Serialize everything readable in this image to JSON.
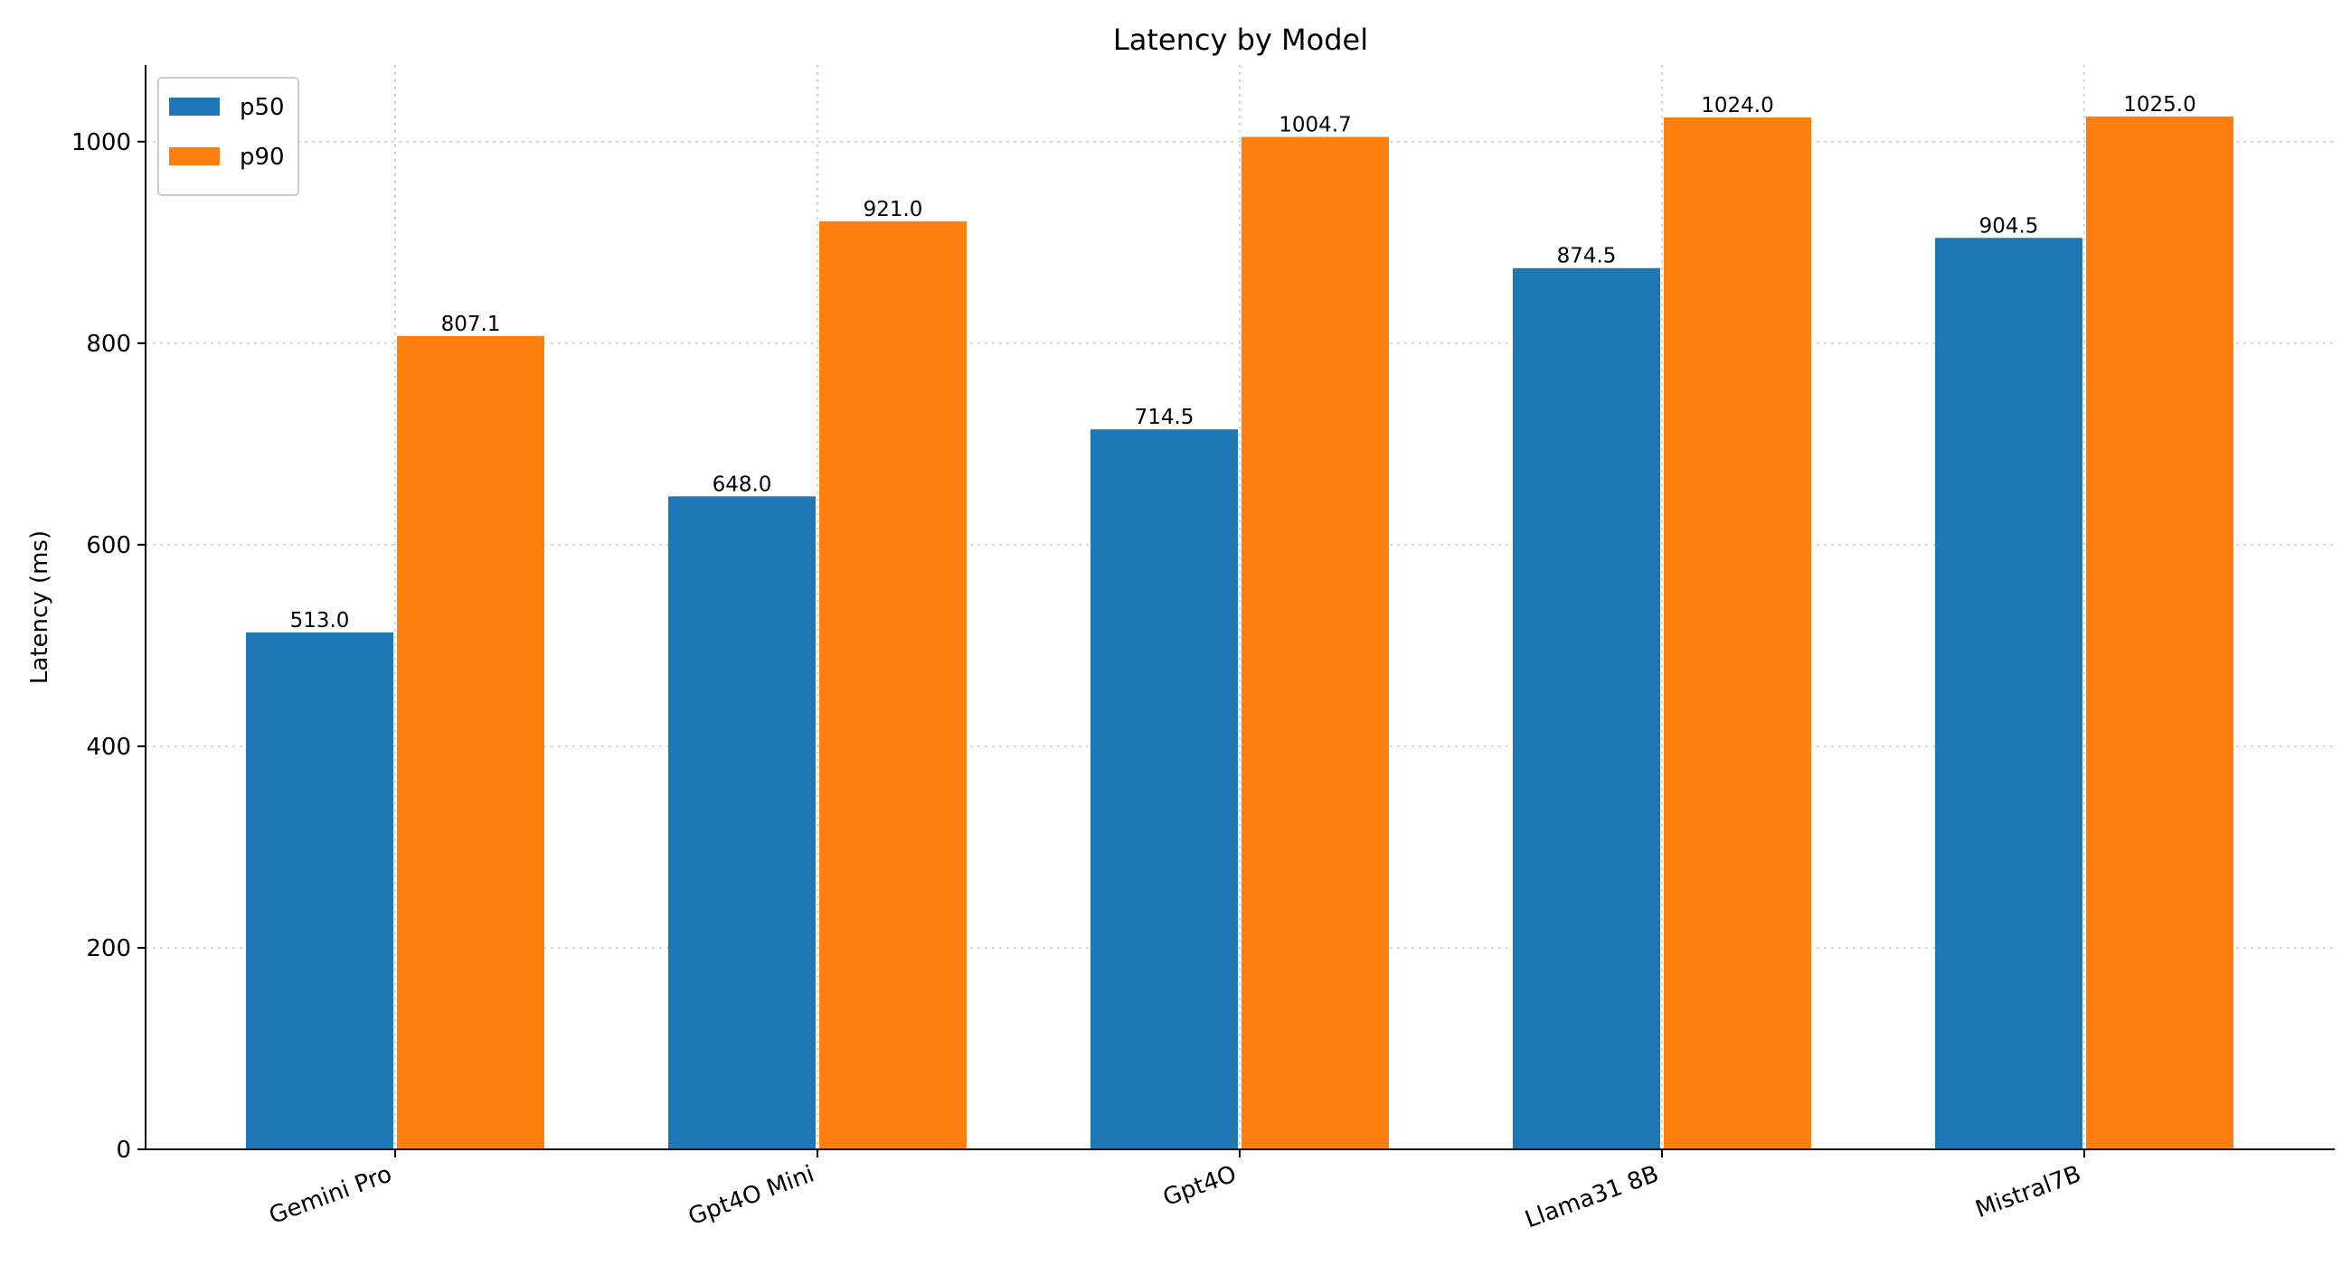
{
  "chart_data": {
    "type": "bar",
    "title": "Latency by Model",
    "xlabel": "",
    "ylabel": "Latency (ms)",
    "categories": [
      "Gemini Pro",
      "Gpt4O Mini",
      "Gpt4O",
      "Llama31 8B",
      "Mistral7B"
    ],
    "series": [
      {
        "name": "p50",
        "color": "#1f77b4",
        "values": [
          513.0,
          648.0,
          714.5,
          874.5,
          904.5
        ],
        "labels": [
          "513.0",
          "648.0",
          "714.5",
          "874.5",
          "904.5"
        ]
      },
      {
        "name": "p90",
        "color": "#ff7f0e",
        "values": [
          807.1,
          921.0,
          1004.7,
          1024.0,
          1025.0
        ],
        "labels": [
          "807.1",
          "921.0",
          "1004.7",
          "1024.0",
          "1025.0"
        ]
      }
    ],
    "ylim": [
      0,
      1076
    ],
    "yticks": [
      0,
      200,
      400,
      600,
      800,
      1000
    ],
    "ytick_labels": [
      "0",
      "200",
      "400",
      "600",
      "800",
      "1000"
    ],
    "grid": true,
    "legend_position": "top-left"
  }
}
